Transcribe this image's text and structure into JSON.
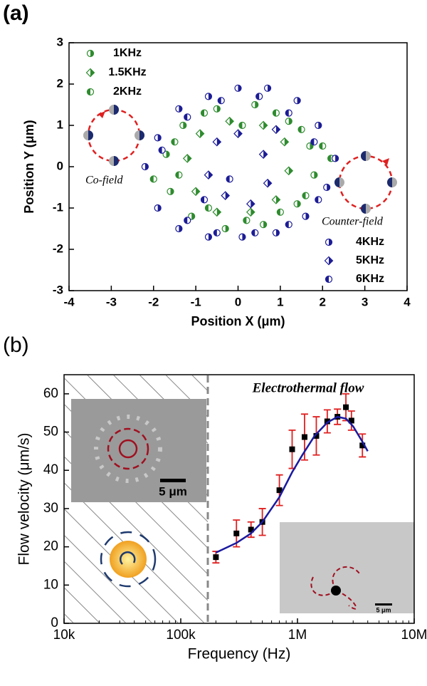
{
  "chart_data": [
    {
      "type": "scatter",
      "panel_label": "(a)",
      "xlabel": "Position X (μm)",
      "ylabel": "Position Y (μm)",
      "xlim": [
        -4,
        4
      ],
      "xticks": [
        -4,
        -3,
        -2,
        -1,
        0,
        1,
        2,
        3,
        4
      ],
      "ylim": [
        -3,
        3
      ],
      "yticks": [
        -3,
        -2,
        -1,
        0,
        1,
        2,
        3
      ],
      "annotations": [
        "Co-field",
        "Counter-field"
      ],
      "series": [
        {
          "name": "1KHz",
          "color": "#2e8b2e",
          "marker": "circle",
          "legend": "upper left",
          "x": [
            -1.7,
            -1.3,
            -0.5,
            0.4,
            1.2,
            1.7,
            1.8,
            1.4,
            0.6,
            -0.3,
            -1.1,
            -1.6
          ],
          "values": [
            0.3,
            1.0,
            1.4,
            1.5,
            1.1,
            0.5,
            -0.2,
            -0.9,
            -1.4,
            -1.5,
            -1.2,
            -0.6
          ]
        },
        {
          "name": "1.5KHz",
          "color": "#2e8b2e",
          "marker": "diamond",
          "legend": "upper left",
          "x": [
            -1.2,
            -0.9,
            -0.2,
            0.6,
            1.1,
            1.2,
            0.9,
            0.3,
            -0.5,
            -1.0
          ],
          "values": [
            0.2,
            0.8,
            1.1,
            1.0,
            0.6,
            -0.1,
            -0.8,
            -1.1,
            -1.1,
            -0.6
          ]
        },
        {
          "name": "2KHz",
          "color": "#2e8b2e",
          "marker": "hex",
          "legend": "upper left",
          "x": [
            -2.0,
            -1.5,
            -0.8,
            0.1,
            0.9,
            1.5,
            2.0,
            2.2,
            1.6,
            1.0,
            0.2,
            -0.7,
            -1.4
          ],
          "values": [
            -0.3,
            0.6,
            1.3,
            1.0,
            1.3,
            0.9,
            0.5,
            0.2,
            -0.7,
            -1.1,
            -1.3,
            -1.0,
            -0.2
          ]
        },
        {
          "name": "4KHz",
          "color": "#1c1c96",
          "marker": "circle",
          "legend": "lower right",
          "x": [
            -2.2,
            -1.9,
            -1.4,
            -0.7,
            0.0,
            0.7,
            1.4,
            1.9,
            2.3,
            2.1,
            1.6,
            0.9,
            0.1,
            -0.7,
            -1.4,
            -1.9
          ],
          "values": [
            0.0,
            0.7,
            1.4,
            1.7,
            1.9,
            1.9,
            1.6,
            1.0,
            0.2,
            -0.5,
            -1.2,
            -1.6,
            -1.7,
            -1.7,
            -1.5,
            -1.0
          ]
        },
        {
          "name": "5KHz",
          "color": "#1c1c96",
          "marker": "diamond",
          "legend": "lower right",
          "x": [
            -0.5,
            0.0,
            0.6,
            0.7,
            0.3,
            -0.3,
            -0.7,
            0.9
          ],
          "values": [
            0.6,
            0.8,
            0.3,
            -0.4,
            -0.9,
            -0.7,
            -0.2,
            0.9
          ]
        },
        {
          "name": "6KHz",
          "color": "#1c1c96",
          "marker": "hex",
          "legend": "lower right",
          "x": [
            -1.8,
            -1.2,
            -0.4,
            0.5,
            1.2,
            1.8,
            1.9,
            1.2,
            0.4,
            -0.5,
            -1.2,
            -0.8,
            -0.2
          ],
          "values": [
            0.4,
            1.2,
            1.6,
            1.7,
            1.3,
            0.6,
            -0.8,
            -1.4,
            -1.6,
            -1.6,
            -1.3,
            -0.8,
            -0.3
          ]
        }
      ]
    },
    {
      "type": "errorbar",
      "panel_label": "(b)",
      "xlabel": "Frequency (Hz)",
      "ylabel": "Flow velocity (μm/s)",
      "xscale": "log",
      "xlim": [
        10000,
        10000000
      ],
      "xticks": [
        {
          "value": 10000,
          "label": "10k"
        },
        {
          "value": 100000,
          "label": "100k"
        },
        {
          "value": 1000000,
          "label": "1M"
        },
        {
          "value": 10000000,
          "label": "10M"
        }
      ],
      "ylim": [
        0,
        65
      ],
      "yticks": [
        0,
        10,
        20,
        30,
        40,
        50,
        60
      ],
      "annotations": [
        "Electrothermal flow",
        "5 μm",
        "5 μm"
      ],
      "series": [
        {
          "kind": "points",
          "color": "#000000",
          "error_color": "#e02020",
          "x": [
            200000,
            300000,
            400000,
            500000,
            700000,
            900000,
            1150000,
            1450000,
            1800000,
            2200000,
            2600000,
            2900000,
            3600000
          ],
          "values": [
            17.3,
            23.5,
            24.5,
            26.5,
            34.8,
            45.5,
            48.7,
            49,
            52.8,
            54,
            56.5,
            53,
            46.5
          ],
          "errors": [
            1.5,
            3.5,
            2,
            3.5,
            4,
            5,
            6,
            5,
            3,
            2,
            3.5,
            2.5,
            3
          ]
        },
        {
          "kind": "line",
          "color": "#1a1aa0",
          "x": [
            200000,
            300000,
            400000,
            500000,
            700000,
            900000,
            1100000,
            1400000,
            1800000,
            2200000,
            2600000,
            3000000,
            3600000,
            4000000
          ],
          "values": [
            18.5,
            21,
            23.5,
            26.5,
            33,
            39.5,
            44,
            49,
            52.5,
            54,
            53.5,
            51.5,
            47.5,
            45
          ]
        }
      ]
    }
  ]
}
